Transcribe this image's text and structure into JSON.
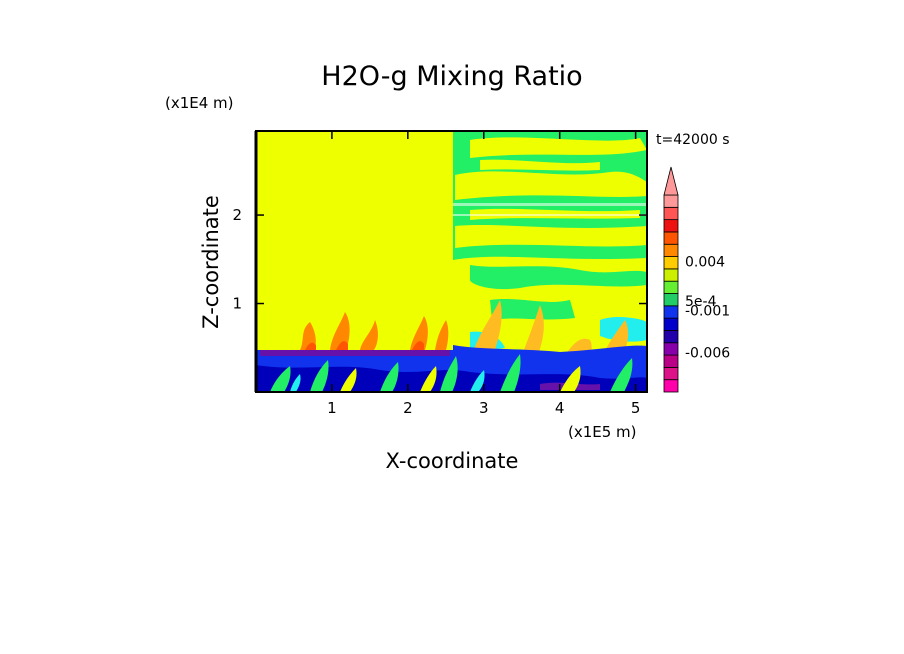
{
  "chart_data": {
    "type": "heatmap",
    "title": "H2O-g Mixing Ratio",
    "xlabel": "X-coordinate",
    "ylabel": "Z-coordinate",
    "x_multiplier": "(x1E5 m)",
    "y_multiplier": "(x1E4 m)",
    "time_label": "t=42000 s",
    "xlim": [
      0,
      5.15
    ],
    "ylim": [
      0,
      2.95
    ],
    "x_ticks": [
      1,
      2,
      3,
      4,
      5
    ],
    "x_tick_labels": [
      "1",
      "2",
      "3",
      "4",
      "5"
    ],
    "y_ticks": [
      1,
      2
    ],
    "y_tick_labels": [
      "1",
      "2"
    ],
    "colorbar": {
      "colors": [
        "#ff00aa",
        "#dd1188",
        "#bb0088",
        "#8800aa",
        "#2200aa",
        "#0000cc",
        "#1133ee",
        "#22cc66",
        "#66ee33",
        "#ccee00",
        "#ffcc00",
        "#ff8800",
        "#ff5500",
        "#ee1111",
        "#ff5555",
        "#ff9999"
      ],
      "labels": [
        {
          "text": "-0.006",
          "level": 3.2
        },
        {
          "text": "-0.001",
          "level": 6.6
        },
        {
          "text": "5e-4",
          "level": 7.4
        },
        {
          "text": "0.004",
          "level": 10.6
        }
      ],
      "extend": "max"
    }
  }
}
